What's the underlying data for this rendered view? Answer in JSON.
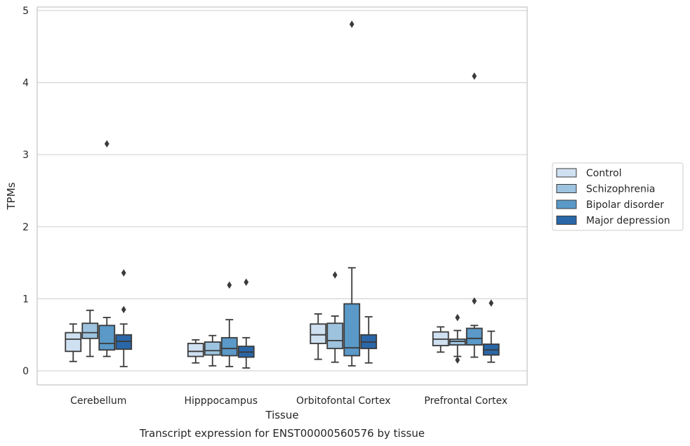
{
  "chart_data": {
    "type": "box",
    "title": "",
    "caption": "Transcript expression for ENST00000560576 by tissue",
    "xlabel": "Tissue",
    "ylabel": "TPMs",
    "ylim": [
      -0.2,
      5.05
    ],
    "yticks": [
      "0",
      "1",
      "2",
      "3",
      "4",
      "5"
    ],
    "grid": "horizontal",
    "legend_position": "right",
    "categories": [
      "Cerebellum",
      "Hipppocampus",
      "Orbitofontal Cortex",
      "Prefrontal Cortex"
    ],
    "series": [
      {
        "name": "Control",
        "color": "#cfe0f1",
        "boxes": [
          {
            "whislo": 0.13,
            "q1": 0.27,
            "med": 0.44,
            "q3": 0.53,
            "whishi": 0.65,
            "fliers": []
          },
          {
            "whislo": 0.11,
            "q1": 0.2,
            "med": 0.27,
            "q3": 0.38,
            "whishi": 0.43,
            "fliers": []
          },
          {
            "whislo": 0.16,
            "q1": 0.38,
            "med": 0.5,
            "q3": 0.65,
            "whishi": 0.79,
            "fliers": []
          },
          {
            "whislo": 0.26,
            "q1": 0.35,
            "med": 0.44,
            "q3": 0.54,
            "whishi": 0.61,
            "fliers": []
          }
        ]
      },
      {
        "name": "Schizophrenia",
        "color": "#9dc3df",
        "boxes": [
          {
            "whislo": 0.2,
            "q1": 0.45,
            "med": 0.53,
            "q3": 0.66,
            "whishi": 0.84,
            "fliers": []
          },
          {
            "whislo": 0.07,
            "q1": 0.22,
            "med": 0.28,
            "q3": 0.4,
            "whishi": 0.49,
            "fliers": []
          },
          {
            "whislo": 0.12,
            "q1": 0.31,
            "med": 0.42,
            "q3": 0.66,
            "whishi": 0.76,
            "fliers": [
              1.33
            ]
          },
          {
            "whislo": 0.2,
            "q1": 0.36,
            "med": 0.41,
            "q3": 0.44,
            "whishi": 0.56,
            "fliers": [
              0.74,
              0.15
            ]
          }
        ]
      },
      {
        "name": "Bipolar disorder",
        "color": "#5a99c8",
        "boxes": [
          {
            "whislo": 0.2,
            "q1": 0.29,
            "med": 0.38,
            "q3": 0.63,
            "whishi": 0.74,
            "fliers": [
              3.15
            ]
          },
          {
            "whislo": 0.06,
            "q1": 0.21,
            "med": 0.31,
            "q3": 0.46,
            "whishi": 0.71,
            "fliers": [
              1.19
            ]
          },
          {
            "whislo": 0.07,
            "q1": 0.21,
            "med": 0.32,
            "q3": 0.93,
            "whishi": 1.43,
            "fliers": [
              4.81
            ]
          },
          {
            "whislo": 0.19,
            "q1": 0.36,
            "med": 0.45,
            "q3": 0.59,
            "whishi": 0.63,
            "fliers": [
              4.09,
              0.97
            ]
          }
        ]
      },
      {
        "name": "Major depression",
        "color": "#2a67a8",
        "boxes": [
          {
            "whislo": 0.06,
            "q1": 0.3,
            "med": 0.41,
            "q3": 0.5,
            "whishi": 0.65,
            "fliers": [
              1.36,
              0.85
            ]
          },
          {
            "whislo": 0.04,
            "q1": 0.19,
            "med": 0.26,
            "q3": 0.34,
            "whishi": 0.46,
            "fliers": [
              1.23
            ]
          },
          {
            "whislo": 0.11,
            "q1": 0.31,
            "med": 0.4,
            "q3": 0.5,
            "whishi": 0.75,
            "fliers": []
          },
          {
            "whislo": 0.12,
            "q1": 0.22,
            "med": 0.29,
            "q3": 0.37,
            "whishi": 0.55,
            "fliers": [
              0.94
            ]
          }
        ]
      }
    ]
  }
}
